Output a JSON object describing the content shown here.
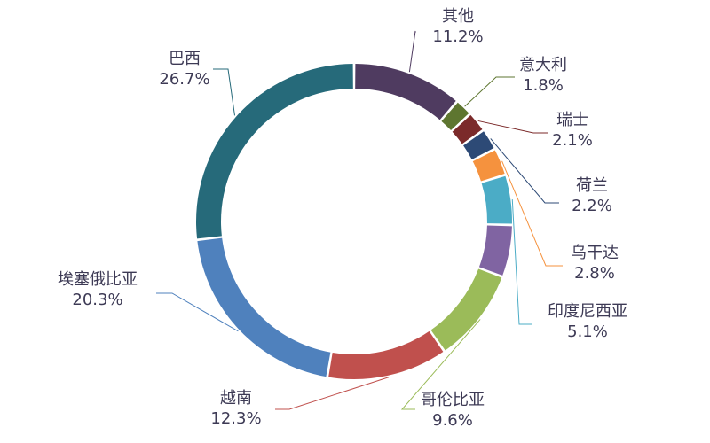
{
  "chart_data": {
    "type": "pie",
    "variant": "donut",
    "title": "",
    "legend": "none",
    "slices": [
      {
        "name": "其他",
        "value": 11.2,
        "label": "11.2%",
        "color": "#4f3b60"
      },
      {
        "name": "意大利",
        "value": 1.8,
        "label": "1.8%",
        "color": "#5e7630"
      },
      {
        "name": "瑞士",
        "value": 2.1,
        "label": "2.1%",
        "color": "#7b2a2a"
      },
      {
        "name": "荷兰",
        "value": 2.2,
        "label": "2.2%",
        "color": "#2d4a76"
      },
      {
        "name": "乌干达",
        "value": 2.8,
        "label": "2.8%",
        "color": "#f5923e"
      },
      {
        "name": "印度尼西亚",
        "value": 5.1,
        "label": "5.1%",
        "color": "#4bacc6"
      },
      {
        "name": "哥伦比亚",
        "value": 5.3,
        "label": "5.3%",
        "color": "#8064a2"
      },
      {
        "name": "哥伦比亚",
        "value": 9.6,
        "label": "9.6%",
        "color": "#9bbb59"
      },
      {
        "name": "越南",
        "value": 12.3,
        "label": "12.3%",
        "color": "#c0504d"
      },
      {
        "name": "埃塞俄比亚",
        "value": 20.3,
        "label": "20.3%",
        "color": "#4f81bd"
      },
      {
        "name": "巴西",
        "value": 26.7,
        "label": "26.7%",
        "color": "#266a7a"
      }
    ]
  }
}
